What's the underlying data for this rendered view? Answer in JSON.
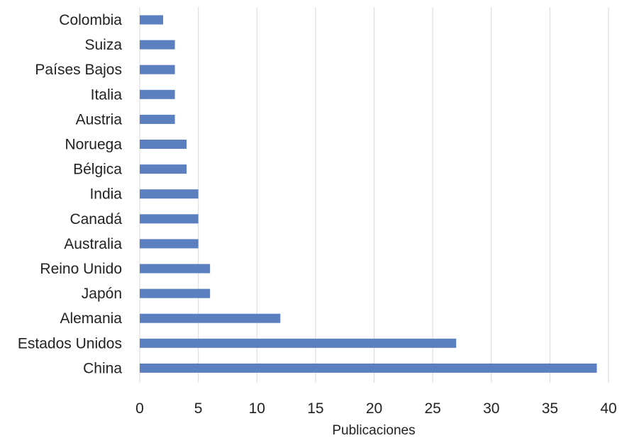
{
  "chart_data": {
    "type": "bar",
    "orientation": "horizontal",
    "categories": [
      "Colombia",
      "Suiza",
      "Países Bajos",
      "Italia",
      "Austria",
      "Noruega",
      "Bélgica",
      "India",
      "Canadá",
      "Australia",
      "Reino Unido",
      "Japón",
      "Alemania",
      "Estados Unidos",
      "China"
    ],
    "values": [
      2,
      3,
      3,
      3,
      3,
      4,
      4,
      5,
      5,
      5,
      6,
      6,
      12,
      27,
      39
    ],
    "title": "",
    "xlabel": "Publicaciones",
    "ylabel": "",
    "xlim": [
      0,
      40
    ],
    "xticks": [
      "0",
      "5",
      "10",
      "15",
      "20",
      "25",
      "30",
      "35",
      "40"
    ],
    "grid": "vertical",
    "legend": "none",
    "colors": {
      "bar": "#5b7fbf",
      "grid": "#d9d9d9",
      "text": "#222222"
    }
  }
}
